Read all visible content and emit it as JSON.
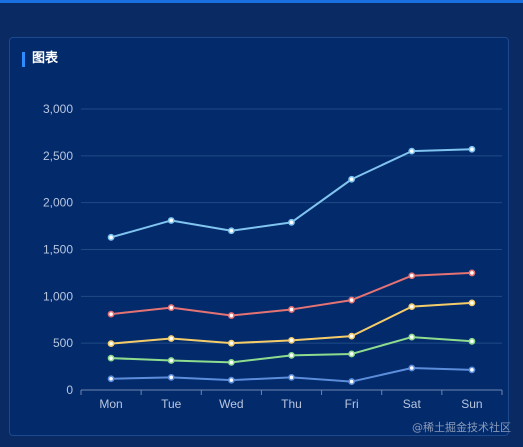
{
  "panel": {
    "title": "图表"
  },
  "watermark": "@稀土掘金技术社区",
  "chart_data": {
    "type": "line",
    "categories": [
      "Mon",
      "Tue",
      "Wed",
      "Thu",
      "Fri",
      "Sat",
      "Sun"
    ],
    "ylim": [
      0,
      3000
    ],
    "yticks": [
      0,
      500,
      1000,
      1500,
      2000,
      2500,
      3000
    ],
    "ytick_labels": [
      "0",
      "500",
      "1,000",
      "1,500",
      "2,000",
      "2,500",
      "3,000"
    ],
    "grid": true,
    "series": [
      {
        "color": "#80c4f0",
        "values": [
          1630,
          1810,
          1700,
          1790,
          2250,
          2550,
          2570
        ]
      },
      {
        "color": "#e57373",
        "values": [
          810,
          880,
          795,
          860,
          960,
          1220,
          1250
        ]
      },
      {
        "color": "#f5cc6a",
        "values": [
          495,
          550,
          500,
          530,
          575,
          890,
          930
        ]
      },
      {
        "color": "#8edc8e",
        "values": [
          340,
          315,
          295,
          370,
          385,
          565,
          520
        ]
      },
      {
        "color": "#5c8ddb",
        "values": [
          120,
          135,
          105,
          135,
          90,
          235,
          215
        ]
      }
    ]
  }
}
